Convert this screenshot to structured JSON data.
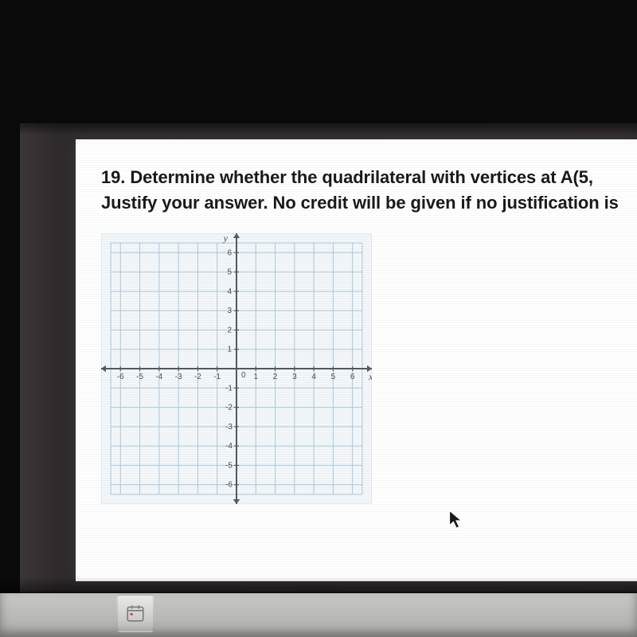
{
  "question": {
    "number": "19.",
    "line1": "Determine whether the quadrilateral with vertices at A(5,",
    "line2": "Justify your answer. No credit will be given if no justification is"
  },
  "graph": {
    "type": "coordinate-plane",
    "x_axis_label": "x",
    "y_axis_label": "y",
    "x_ticks": [
      "-6",
      "-5",
      "-4",
      "-3",
      "-2",
      "-1",
      "0",
      "1",
      "2",
      "3",
      "4",
      "5",
      "6"
    ],
    "y_ticks_pos": [
      "6",
      "5",
      "4",
      "3",
      "2",
      "1"
    ],
    "y_ticks_neg": [
      "-1",
      "-2",
      "-3",
      "-4",
      "-5",
      "-6"
    ],
    "tick_label_fontsize": 10,
    "axis_label_fontsize": 12,
    "xlim": [
      -7,
      7
    ],
    "ylim": [
      -7,
      7
    ],
    "background_color": "#f4f7f9",
    "grid_color": "#a9c9de",
    "grid_stroke_width": 1,
    "axis_color": "#555a60",
    "axis_stroke_width": 2,
    "tick_label_color": "#4a4f55"
  },
  "cursor": {
    "fill": "#1a1a1a",
    "stroke": "#ffffff"
  },
  "colors": {
    "page_bg": "#ffffff",
    "text": "#1a1a1a",
    "bezel": "#2f2a2c",
    "outer": "#0a0a0a",
    "desk": "#bcbdb9"
  }
}
